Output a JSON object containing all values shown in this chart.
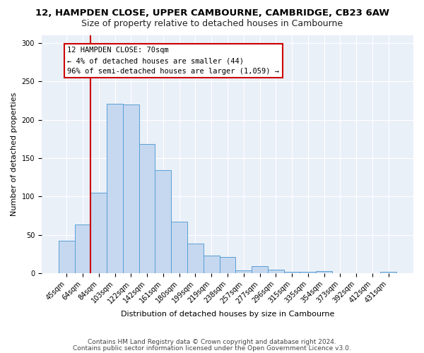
{
  "title1": "12, HAMPDEN CLOSE, UPPER CAMBOURNE, CAMBRIDGE, CB23 6AW",
  "title2": "Size of property relative to detached houses in Cambourne",
  "xlabel": "Distribution of detached houses by size in Cambourne",
  "ylabel": "Number of detached properties",
  "categories": [
    "45sqm",
    "64sqm",
    "84sqm",
    "103sqm",
    "122sqm",
    "142sqm",
    "161sqm",
    "180sqm",
    "199sqm",
    "219sqm",
    "238sqm",
    "257sqm",
    "277sqm",
    "296sqm",
    "315sqm",
    "335sqm",
    "354sqm",
    "373sqm",
    "392sqm",
    "412sqm",
    "431sqm"
  ],
  "values": [
    42,
    63,
    105,
    221,
    220,
    168,
    134,
    67,
    39,
    23,
    21,
    4,
    9,
    5,
    2,
    2,
    3,
    0,
    0,
    0,
    2
  ],
  "bar_color": "#c5d8f0",
  "bar_edge_color": "#5a9fd4",
  "vline_x": 1.5,
  "vline_color": "#cc0000",
  "annotation_text": "12 HAMPDEN CLOSE: 70sqm\n← 4% of detached houses are smaller (44)\n96% of semi-detached houses are larger (1,059) →",
  "annotation_box_color": "#cc0000",
  "annotation_bg": "#ffffff",
  "ylim": [
    0,
    310
  ],
  "yticks": [
    0,
    50,
    100,
    150,
    200,
    250,
    300
  ],
  "footer1": "Contains HM Land Registry data © Crown copyright and database right 2024.",
  "footer2": "Contains public sector information licensed under the Open Government Licence v3.0.",
  "bg_color": "#eaf0f8",
  "title1_fontsize": 9.5,
  "title2_fontsize": 9,
  "axis_label_fontsize": 8,
  "tick_fontsize": 7,
  "annotation_fontsize": 7.5,
  "footer_fontsize": 6.5
}
